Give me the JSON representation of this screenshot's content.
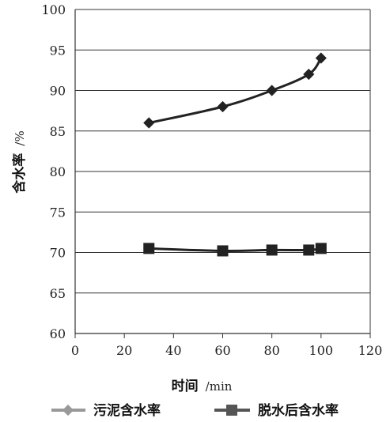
{
  "chart_data": {
    "type": "line",
    "xlabel": "时间",
    "xunit": "/min",
    "ylabel": "含水率",
    "yunit": "/%",
    "xlim": [
      0,
      120
    ],
    "ylim": [
      60,
      100
    ],
    "xticks": [
      "0",
      "20",
      "40",
      "60",
      "80",
      "100",
      "120"
    ],
    "yticks": [
      "60",
      "65",
      "70",
      "75",
      "80",
      "85",
      "90",
      "95",
      "100"
    ],
    "grid": "horizontal",
    "legend": "bottom",
    "series": [
      {
        "name": "污泥含水率",
        "marker": "diamond",
        "color": "#222222",
        "legend_color": "#999999",
        "x": [
          30,
          60,
          80,
          95,
          100
        ],
        "y": [
          86,
          88,
          90,
          92,
          94
        ]
      },
      {
        "name": "脱水后含水率",
        "marker": "square",
        "color": "#222222",
        "legend_color": "#555555",
        "x": [
          30,
          60,
          80,
          95,
          100
        ],
        "y": [
          70.5,
          70.2,
          70.3,
          70.3,
          70.5
        ]
      }
    ]
  }
}
